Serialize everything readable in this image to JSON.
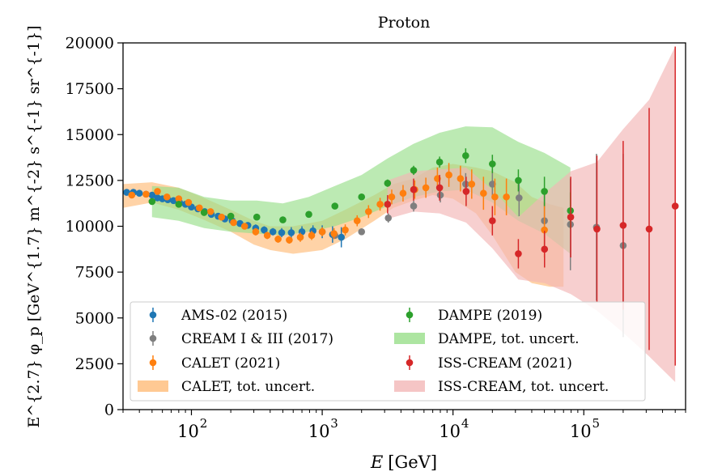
{
  "chart_data": {
    "type": "scatter",
    "title": "Proton",
    "xlabel_main": "E",
    "xlabel_unit": "[GeV]",
    "ylabel": "E^{2.7} φ_p [GeV^{1.7} m^{-2} s^{-1} sr^{-1}]",
    "xscale": "log",
    "xlim": [
      30,
      600000
    ],
    "ylim": [
      0,
      20000
    ],
    "y_ticks": [
      0,
      2500,
      5000,
      7500,
      10000,
      12500,
      15000,
      17500,
      20000
    ],
    "y_tick_labels": [
      "0",
      "2500",
      "5000",
      "7500",
      "10000",
      "12500",
      "15000",
      "17500",
      "20000"
    ],
    "x_ticks": [
      100,
      1000,
      10000,
      100000
    ],
    "x_tick_labels": [
      "10",
      "10",
      "10",
      "10"
    ],
    "x_tick_exponents": [
      "2",
      "3",
      "4",
      "5"
    ],
    "legend_position": "lower-left",
    "series": [
      {
        "name": "AMS-02 (2015)",
        "kind": "points",
        "color": "#1f77b4",
        "x": [
          32,
          36,
          40,
          45,
          50,
          55,
          60,
          66,
          73,
          81,
          90,
          100,
          112,
          126,
          142,
          160,
          180,
          205,
          235,
          270,
          310,
          360,
          420,
          490,
          580,
          700,
          850,
          1000,
          1200,
          1400
        ],
        "y": [
          11850,
          11850,
          11800,
          11750,
          11700,
          11550,
          11500,
          11450,
          11400,
          11300,
          11200,
          11050,
          10950,
          10800,
          10650,
          10550,
          10400,
          10300,
          10150,
          10050,
          9900,
          9800,
          9700,
          9650,
          9650,
          9700,
          9750,
          9700,
          9550,
          9400
        ],
        "err": [
          150,
          150,
          150,
          150,
          150,
          150,
          150,
          150,
          150,
          150,
          150,
          150,
          150,
          150,
          150,
          150,
          150,
          150,
          150,
          150,
          200,
          200,
          200,
          250,
          300,
          300,
          300,
          350,
          450,
          550
        ]
      },
      {
        "name": "CREAM I & III (2017)",
        "kind": "points",
        "color": "#7f7f7f",
        "x": [
          1250,
          2000,
          3200,
          5000,
          8000,
          12500,
          20000,
          32000,
          50000,
          79000,
          125000,
          200000
        ],
        "y": [
          9500,
          9700,
          10450,
          11100,
          11700,
          12300,
          12300,
          11550,
          10300,
          10100,
          9950,
          8950
        ],
        "err": [
          150,
          180,
          250,
          300,
          400,
          600,
          800,
          1000,
          1500,
          2500,
          4000,
          5000
        ]
      },
      {
        "name": "CALET (2021)",
        "kind": "points",
        "color": "#ff7f0e",
        "x": [
          35,
          45,
          55,
          65,
          80,
          95,
          115,
          140,
          170,
          210,
          255,
          310,
          380,
          460,
          560,
          680,
          830,
          1000,
          1230,
          1500,
          1850,
          2260,
          2770,
          3400,
          4150,
          5100,
          6200,
          7600,
          9300,
          11400,
          13900,
          17100,
          20900,
          25600,
          50000
        ],
        "y": [
          11700,
          11750,
          11900,
          11600,
          11500,
          11300,
          11000,
          10800,
          10500,
          10200,
          10000,
          9700,
          9500,
          9300,
          9250,
          9400,
          9500,
          9700,
          9600,
          9800,
          10300,
          10800,
          11200,
          11600,
          11800,
          12000,
          12100,
          12600,
          12800,
          12600,
          12300,
          11800,
          11600,
          11600,
          9800
        ],
        "err": [
          150,
          150,
          150,
          150,
          150,
          150,
          150,
          150,
          150,
          150,
          150,
          200,
          200,
          200,
          200,
          250,
          250,
          250,
          300,
          300,
          300,
          350,
          350,
          400,
          450,
          500,
          550,
          600,
          650,
          700,
          800,
          900,
          1000,
          1000,
          1500
        ]
      },
      {
        "name": "DAMPE (2019)",
        "kind": "points",
        "color": "#2ca02c",
        "x": [
          50,
          80,
          125,
          200,
          316,
          500,
          790,
          1250,
          2000,
          3160,
          5000,
          7900,
          12500,
          20000,
          31600,
          50000,
          79000
        ],
        "y": [
          11350,
          11200,
          10750,
          10550,
          10500,
          10350,
          10650,
          11100,
          11600,
          12350,
          13050,
          13500,
          13850,
          13400,
          12500,
          11900,
          10850
        ],
        "err": [
          100,
          100,
          100,
          100,
          100,
          100,
          100,
          120,
          150,
          200,
          250,
          300,
          400,
          500,
          600,
          800,
          1000
        ]
      },
      {
        "name": "ISS-CREAM (2021)",
        "kind": "points",
        "color": "#d62728",
        "x": [
          3160,
          5000,
          7900,
          12600,
          20000,
          31600,
          50100,
          79400,
          126000,
          200000,
          316000,
          500000
        ],
        "y": [
          11200,
          12000,
          12100,
          11900,
          10300,
          8500,
          8750,
          10500,
          9850,
          10050,
          9850,
          11100
        ],
        "err": [
          500,
          600,
          700,
          800,
          800,
          800,
          1000,
          2200,
          4000,
          4600,
          6600,
          8700
        ]
      }
    ],
    "bands": [
      {
        "name": "CALET, tot. uncert.",
        "color": "#ffbb78",
        "x": [
          30,
          50,
          80,
          120,
          200,
          300,
          400,
          600,
          1000,
          1500,
          2500,
          3500,
          5000,
          7000,
          10000,
          15000,
          20000,
          30000,
          40000,
          55000,
          70000
        ],
        "low": [
          11000,
          11300,
          10900,
          10400,
          9700,
          9000,
          8700,
          8500,
          8700,
          9300,
          10300,
          11000,
          11400,
          11700,
          11500,
          10700,
          9500,
          7500,
          6900,
          6700,
          6700
        ],
        "high": [
          12300,
          12400,
          12100,
          11600,
          10900,
          10300,
          10000,
          10000,
          10300,
          10900,
          11700,
          12300,
          12600,
          13200,
          13400,
          13200,
          13000,
          12400,
          11600,
          11200,
          11000
        ]
      },
      {
        "name": "DAMPE, tot. uncert.",
        "color": "#98df8a",
        "x": [
          50,
          80,
          125,
          200,
          316,
          500,
          790,
          1250,
          2000,
          3160,
          5000,
          7900,
          12500,
          20000,
          31600,
          50000,
          79000
        ],
        "low": [
          10500,
          10300,
          9900,
          9700,
          9600,
          9500,
          9700,
          10000,
          10500,
          11100,
          11600,
          11900,
          12000,
          11300,
          10300,
          9600,
          8500
        ],
        "high": [
          12200,
          12100,
          11600,
          11400,
          11400,
          11250,
          11600,
          12200,
          12800,
          13700,
          14500,
          15100,
          15450,
          15400,
          14600,
          14000,
          13200
        ]
      },
      {
        "name": "ISS-CREAM, tot. uncert.",
        "color": "#f2b6b6",
        "x": [
          3160,
          5000,
          7900,
          12600,
          20000,
          31600,
          50100,
          79400,
          126000,
          200000,
          316000,
          500000
        ],
        "low": [
          10400,
          10800,
          10700,
          10200,
          8800,
          7100,
          6900,
          6300,
          5400,
          4200,
          2900,
          1500
        ],
        "high": [
          12500,
          13000,
          13100,
          13200,
          12000,
          10500,
          11800,
          13000,
          13500,
          15300,
          16900,
          19800
        ]
      }
    ],
    "legend": [
      {
        "label": "AMS-02 (2015)",
        "kind": "point",
        "color": "#1f77b4"
      },
      {
        "label": "CREAM I & III (2017)",
        "kind": "point",
        "color": "#7f7f7f"
      },
      {
        "label": "CALET (2021)",
        "kind": "point",
        "color": "#ff7f0e"
      },
      {
        "label": "CALET, tot. uncert.",
        "kind": "band",
        "color": "#ffbb78"
      },
      {
        "label": "DAMPE (2019)",
        "kind": "point",
        "color": "#2ca02c"
      },
      {
        "label": "DAMPE, tot. uncert.",
        "kind": "band",
        "color": "#98df8a"
      },
      {
        "label": "ISS-CREAM (2021)",
        "kind": "point",
        "color": "#d62728"
      },
      {
        "label": "ISS-CREAM, tot. uncert.",
        "kind": "band",
        "color": "#f2b6b6"
      }
    ]
  }
}
